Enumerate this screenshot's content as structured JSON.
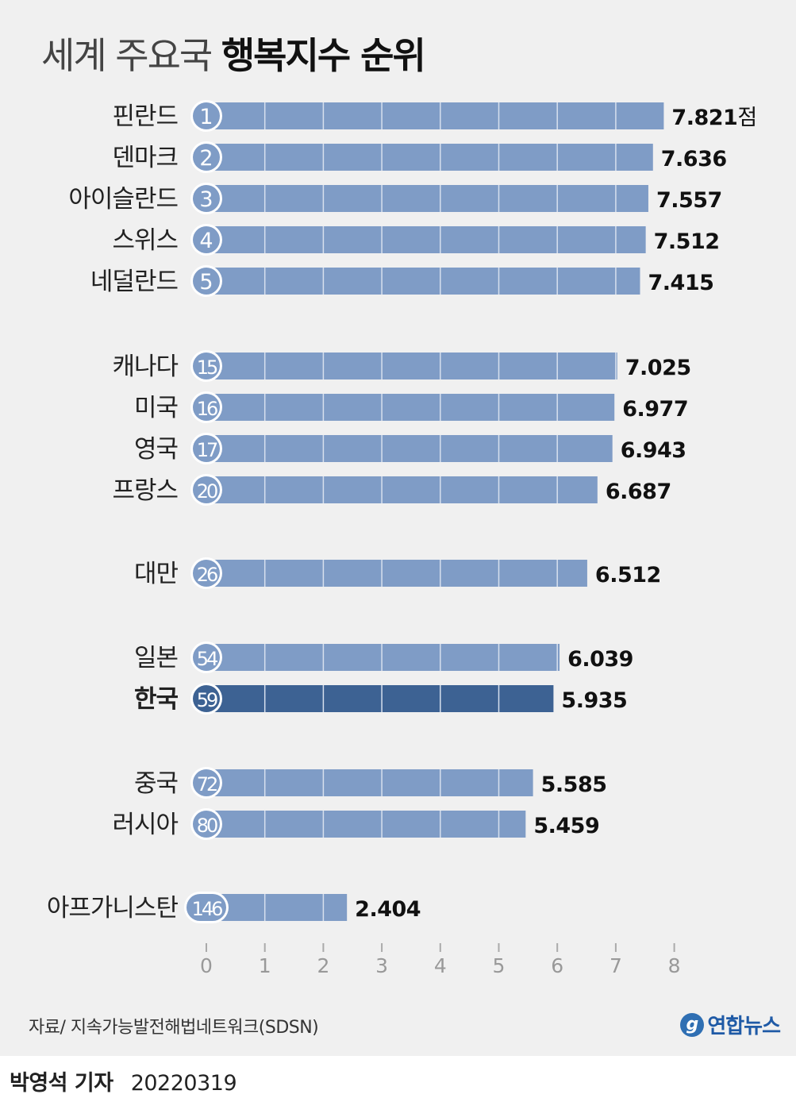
{
  "title": {
    "light": "세계 주요국",
    "bold": "행복지수 순위"
  },
  "unit_suffix": "점",
  "colors": {
    "bar": "#7f9cc6",
    "bar_highlight": "#3d6293",
    "badge": "#7f9cc6",
    "badge_highlight": "#3d6293",
    "panel": "#f0f0f0",
    "gridline": "#d7e0ee"
  },
  "chart_data": {
    "type": "bar",
    "orientation": "horizontal",
    "categories": [
      "핀란드",
      "덴마크",
      "아이슬란드",
      "스위스",
      "네덜란드",
      "캐나다",
      "미국",
      "영국",
      "프랑스",
      "대만",
      "일본",
      "한국",
      "중국",
      "러시아",
      "아프가니스탄"
    ],
    "ranks": [
      "1",
      "2",
      "3",
      "4",
      "5",
      "15",
      "16",
      "17",
      "20",
      "26",
      "54",
      "59",
      "72",
      "80",
      "146"
    ],
    "values": [
      7.821,
      7.636,
      7.557,
      7.512,
      7.415,
      7.025,
      6.977,
      6.943,
      6.687,
      6.512,
      6.039,
      5.935,
      5.585,
      5.459,
      2.404
    ],
    "value_labels": [
      "7.821",
      "7.636",
      "7.557",
      "7.512",
      "7.415",
      "7.025",
      "6.977",
      "6.943",
      "6.687",
      "6.512",
      "6.039",
      "5.935",
      "5.585",
      "5.459",
      "2.404"
    ],
    "highlight": "한국",
    "xlim": [
      0,
      8
    ],
    "xticks": [
      "0",
      "1",
      "2",
      "3",
      "4",
      "5",
      "6",
      "7",
      "8"
    ],
    "grid": true
  },
  "source": "자료/ 지속가능발전해법네트워크(SDSN)",
  "brand": {
    "logo": "g",
    "name": "연합뉴스"
  },
  "credit": {
    "reporter": "박영석 기자",
    "date": "20220319"
  }
}
